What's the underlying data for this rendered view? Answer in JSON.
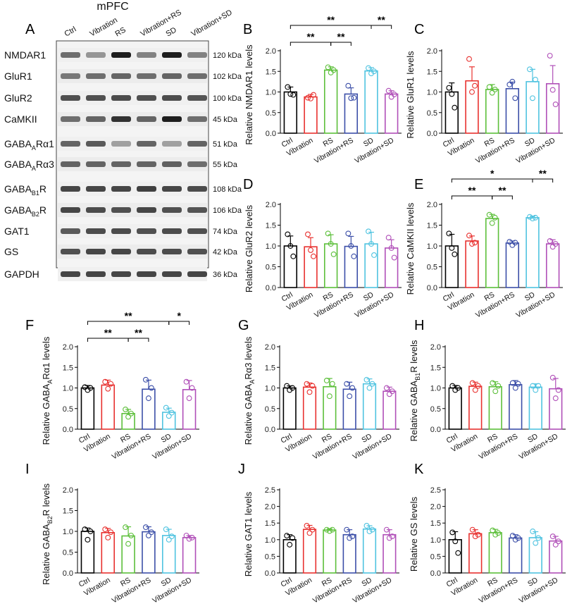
{
  "blot": {
    "letter": "A",
    "title": "mPFC",
    "lanes": [
      "Ctrl",
      "Vibration",
      "RS",
      "Vibration+RS",
      "SD",
      "Vibration+SD"
    ],
    "rows": [
      {
        "protein": "NMDAR1",
        "sub": "",
        "kda": "120 kDa",
        "intensity": [
          0.55,
          0.35,
          0.95,
          0.45,
          0.95,
          0.45
        ]
      },
      {
        "protein": "GluR1",
        "sub": "",
        "kda": "102 kDa",
        "intensity": [
          0.5,
          0.55,
          0.6,
          0.55,
          0.6,
          0.55
        ]
      },
      {
        "protein": "GluR2",
        "sub": "",
        "kda": "100 kDa",
        "intensity": [
          0.7,
          0.7,
          0.72,
          0.7,
          0.72,
          0.68
        ]
      },
      {
        "protein": "CaMKII",
        "sub": "",
        "kda": "45 kDa",
        "intensity": [
          0.55,
          0.6,
          0.85,
          0.6,
          0.95,
          0.55
        ]
      },
      {
        "protein": "GABA",
        "sub": "A",
        "suffix": "Rα1",
        "kda": "51 kDa",
        "intensity": [
          0.6,
          0.65,
          0.3,
          0.6,
          0.3,
          0.6
        ]
      },
      {
        "protein": "GABA",
        "sub": "A",
        "suffix": "Rα3",
        "kda": "55 kDa",
        "intensity": [
          0.6,
          0.6,
          0.6,
          0.6,
          0.62,
          0.55
        ]
      },
      {
        "protein": "GABA",
        "sub": "B1",
        "suffix": "R",
        "kda": "108 kDa",
        "intensity": [
          0.75,
          0.75,
          0.75,
          0.78,
          0.75,
          0.72
        ]
      },
      {
        "protein": "GABA",
        "sub": "B2",
        "suffix": "R",
        "kda": "106 kDa",
        "intensity": [
          0.75,
          0.72,
          0.7,
          0.75,
          0.7,
          0.68
        ]
      },
      {
        "protein": "GAT1",
        "sub": "",
        "kda": "74 kDa",
        "intensity": [
          0.65,
          0.72,
          0.72,
          0.7,
          0.72,
          0.7
        ]
      },
      {
        "protein": "GS",
        "sub": "",
        "kda": "42 kDa",
        "intensity": [
          0.7,
          0.75,
          0.75,
          0.72,
          0.72,
          0.7
        ]
      },
      {
        "protein": "GAPDH",
        "sub": "",
        "kda": "36 kDa",
        "intensity": [
          0.75,
          0.75,
          0.75,
          0.75,
          0.75,
          0.75
        ]
      }
    ]
  },
  "colors": {
    "Ctrl": "#000000",
    "Vibration": "#e8312f",
    "RS": "#5cbf3a",
    "Vibration+RS": "#3c4fa8",
    "SD": "#4fc3e0",
    "Vibration+SD": "#b04fb8"
  },
  "chart_data": [
    {
      "id": "B",
      "letter": "B",
      "type": "bar",
      "ylabel": "Relative NMDAR1 levels",
      "ylim": [
        0,
        2.0
      ],
      "yticks": [
        0,
        0.5,
        1.0,
        1.5,
        2.0
      ],
      "categories": [
        "Ctrl",
        "Vibration",
        "RS",
        "Vibration+RS",
        "SD",
        "Vibration+SD"
      ],
      "values": [
        1.0,
        0.88,
        1.53,
        0.95,
        1.51,
        0.95
      ],
      "errors": [
        0.12,
        0.06,
        0.08,
        0.15,
        0.08,
        0.08
      ],
      "points": [
        [
          1.12,
          0.95,
          0.93
        ],
        [
          0.86,
          0.84,
          0.93
        ],
        [
          1.6,
          1.47,
          1.53
        ],
        [
          1.15,
          0.85,
          0.86
        ],
        [
          1.58,
          1.45,
          1.5
        ],
        [
          1.03,
          0.88,
          0.94
        ]
      ],
      "sig": [
        {
          "from": 0,
          "to": 2,
          "text": "**"
        },
        {
          "from": 2,
          "to": 3,
          "text": "**"
        },
        {
          "from": 0,
          "to": 4,
          "text": "**"
        },
        {
          "from": 4,
          "to": 5,
          "text": "**"
        }
      ]
    },
    {
      "id": "C",
      "letter": "C",
      "type": "bar",
      "ylabel": "Relative GluR1 levels",
      "ylim": [
        0,
        2.0
      ],
      "yticks": [
        0,
        0.5,
        1.0,
        1.5,
        2.0
      ],
      "categories": [
        "Ctrl",
        "Vibration",
        "RS",
        "Vibration+RS",
        "SD",
        "Vibration+SD"
      ],
      "values": [
        1.0,
        1.27,
        1.06,
        1.08,
        1.25,
        1.2
      ],
      "errors": [
        0.22,
        0.34,
        0.12,
        0.16,
        0.3,
        0.44
      ],
      "points": [
        [
          1.1,
          0.95,
          0.62
        ],
        [
          1.8,
          1.0,
          1.15
        ],
        [
          1.12,
          0.98,
          1.06
        ],
        [
          1.18,
          1.25,
          0.85
        ],
        [
          1.55,
          0.85,
          1.3
        ],
        [
          1.88,
          1.05,
          0.7
        ]
      ],
      "sig": []
    },
    {
      "id": "D",
      "letter": "D",
      "type": "bar",
      "ylabel": "Relative GluR2 levels",
      "ylim": [
        0,
        2.0
      ],
      "yticks": [
        0,
        0.5,
        1.0,
        1.5,
        2.0
      ],
      "categories": [
        "Ctrl",
        "Vibration",
        "RS",
        "Vibration+RS",
        "SD",
        "Vibration+SD"
      ],
      "values": [
        1.0,
        0.98,
        1.05,
        0.99,
        1.05,
        0.95
      ],
      "errors": [
        0.24,
        0.22,
        0.22,
        0.24,
        0.28,
        0.2
      ],
      "points": [
        [
          1.28,
          1.0,
          0.75
        ],
        [
          1.28,
          0.9,
          0.75
        ],
        [
          1.3,
          1.05,
          0.8
        ],
        [
          1.3,
          1.0,
          0.75
        ],
        [
          1.35,
          1.05,
          0.78
        ],
        [
          1.2,
          0.95,
          0.72
        ]
      ],
      "sig": []
    },
    {
      "id": "E",
      "letter": "E",
      "type": "bar",
      "ylabel": "Relative CaMKII levels",
      "ylim": [
        0,
        2.0
      ],
      "yticks": [
        0,
        0.5,
        1.0,
        1.5,
        2.0
      ],
      "categories": [
        "Ctrl",
        "Vibration",
        "RS",
        "Vibration+RS",
        "SD",
        "Vibration+SD"
      ],
      "values": [
        1.0,
        1.12,
        1.66,
        1.07,
        1.68,
        1.05
      ],
      "errors": [
        0.28,
        0.12,
        0.1,
        0.05,
        0.04,
        0.1
      ],
      "points": [
        [
          1.3,
          0.95,
          0.8
        ],
        [
          1.25,
          1.05,
          1.08
        ],
        [
          1.75,
          1.55,
          1.68
        ],
        [
          1.1,
          1.02,
          1.08
        ],
        [
          1.7,
          1.66,
          1.68
        ],
        [
          1.12,
          0.98,
          1.05
        ]
      ],
      "sig": [
        {
          "from": 0,
          "to": 2,
          "text": "**"
        },
        {
          "from": 2,
          "to": 3,
          "text": "**"
        },
        {
          "from": 0,
          "to": 4,
          "text": "*"
        },
        {
          "from": 4,
          "to": 5,
          "text": "**"
        }
      ]
    },
    {
      "id": "F",
      "letter": "F",
      "type": "bar",
      "ylabel": "Relative GABA_A Rα1 levels",
      "ylim": [
        0,
        2.0
      ],
      "yticks": [
        0,
        0.5,
        1.0,
        1.5,
        2.0
      ],
      "categories": [
        "Ctrl",
        "Vibration",
        "RS",
        "Vibration+RS",
        "SD",
        "Vibration+SD"
      ],
      "values": [
        1.0,
        1.07,
        0.38,
        0.97,
        0.41,
        0.96
      ],
      "errors": [
        0.06,
        0.12,
        0.1,
        0.22,
        0.1,
        0.22
      ],
      "points": [
        [
          1.02,
          0.95,
          1.0
        ],
        [
          1.15,
          0.98,
          1.1
        ],
        [
          0.48,
          0.3,
          0.38
        ],
        [
          1.2,
          0.75,
          1.0
        ],
        [
          0.52,
          0.32,
          0.4
        ],
        [
          1.15,
          0.75,
          1.0
        ]
      ],
      "sig": [
        {
          "from": 0,
          "to": 2,
          "text": "**"
        },
        {
          "from": 2,
          "to": 3,
          "text": "**"
        },
        {
          "from": 0,
          "to": 4,
          "text": "**"
        },
        {
          "from": 4,
          "to": 5,
          "text": "*"
        }
      ]
    },
    {
      "id": "G",
      "letter": "G",
      "type": "bar",
      "ylabel": "Relative GABA_A Rα3 levels",
      "ylim": [
        0,
        2.0
      ],
      "yticks": [
        0,
        0.5,
        1.0,
        1.5,
        2.0
      ],
      "categories": [
        "Ctrl",
        "Vibration",
        "RS",
        "Vibration+RS",
        "SD",
        "Vibration+SD"
      ],
      "values": [
        1.0,
        1.02,
        1.03,
        0.97,
        1.1,
        0.92
      ],
      "errors": [
        0.05,
        0.1,
        0.2,
        0.17,
        0.12,
        0.1
      ],
      "points": [
        [
          1.05,
          0.95,
          1.0
        ],
        [
          1.1,
          0.9,
          1.05
        ],
        [
          1.18,
          0.8,
          1.1
        ],
        [
          1.1,
          0.8,
          1.0
        ],
        [
          1.2,
          1.0,
          1.1
        ],
        [
          1.0,
          0.85,
          0.92
        ]
      ],
      "sig": []
    },
    {
      "id": "H",
      "letter": "H",
      "type": "bar",
      "ylabel": "Relative GABA_B1 R levels",
      "ylim": [
        0,
        2.0
      ],
      "yticks": [
        0,
        0.5,
        1.0,
        1.5,
        2.0
      ],
      "categories": [
        "Ctrl",
        "Vibration",
        "RS",
        "Vibration+RS",
        "SD",
        "Vibration+SD"
      ],
      "values": [
        1.0,
        1.04,
        1.03,
        1.08,
        1.02,
        0.98
      ],
      "errors": [
        0.06,
        0.1,
        0.12,
        0.1,
        0.08,
        0.25
      ],
      "points": [
        [
          1.05,
          0.95,
          1.0
        ],
        [
          1.12,
          0.95,
          1.05
        ],
        [
          1.12,
          0.92,
          1.05
        ],
        [
          1.12,
          1.0,
          1.1
        ],
        [
          1.05,
          0.95,
          1.05
        ],
        [
          1.25,
          0.75,
          0.95
        ]
      ],
      "sig": []
    },
    {
      "id": "I",
      "letter": "I",
      "type": "bar",
      "ylabel": "Relative GABA_B2 R levels",
      "ylim": [
        0,
        2.0
      ],
      "yticks": [
        0,
        0.5,
        1.0,
        1.5,
        2.0
      ],
      "categories": [
        "Ctrl",
        "Vibration",
        "RS",
        "Vibration+RS",
        "SD",
        "Vibration+SD"
      ],
      "values": [
        1.0,
        0.97,
        0.89,
        0.99,
        0.9,
        0.85
      ],
      "errors": [
        0.08,
        0.1,
        0.22,
        0.12,
        0.15,
        0.05
      ],
      "points": [
        [
          1.05,
          0.8,
          1.0
        ],
        [
          1.05,
          0.85,
          0.98
        ],
        [
          1.1,
          0.7,
          0.9
        ],
        [
          1.1,
          0.9,
          0.98
        ],
        [
          1.05,
          0.8,
          0.88
        ],
        [
          0.9,
          0.82,
          0.85
        ]
      ],
      "sig": []
    },
    {
      "id": "J",
      "letter": "J",
      "type": "bar",
      "ylabel": "Relative GAT1 levels",
      "ylim": [
        0,
        2.5
      ],
      "yticks": [
        0,
        0.5,
        1.0,
        1.5,
        2.0,
        2.5
      ],
      "categories": [
        "Ctrl",
        "Vibration",
        "RS",
        "Vibration+RS",
        "SD",
        "Vibration+SD"
      ],
      "values": [
        1.0,
        1.31,
        1.29,
        1.15,
        1.32,
        1.15
      ],
      "errors": [
        0.15,
        0.12,
        0.04,
        0.15,
        0.1,
        0.15
      ],
      "points": [
        [
          1.12,
          0.85,
          1.05
        ],
        [
          1.42,
          1.2,
          1.3
        ],
        [
          1.3,
          1.26,
          1.3
        ],
        [
          1.3,
          1.05,
          1.1
        ],
        [
          1.42,
          1.25,
          1.3
        ],
        [
          1.3,
          1.05,
          1.1
        ]
      ],
      "sig": []
    },
    {
      "id": "K",
      "letter": "K",
      "type": "bar",
      "ylabel": "Relative GS levels",
      "ylim": [
        0,
        2.5
      ],
      "yticks": [
        0,
        0.5,
        1.0,
        1.5,
        2.0,
        2.5
      ],
      "categories": [
        "Ctrl",
        "Vibration",
        "RS",
        "Vibration+RS",
        "SD",
        "Vibration+SD"
      ],
      "values": [
        1.0,
        1.18,
        1.21,
        1.05,
        1.06,
        0.96
      ],
      "errors": [
        0.24,
        0.12,
        0.1,
        0.1,
        0.18,
        0.14
      ],
      "points": [
        [
          1.22,
          0.95,
          0.6
        ],
        [
          1.3,
          1.1,
          1.15
        ],
        [
          1.28,
          1.15,
          1.2
        ],
        [
          1.12,
          1.0,
          1.05
        ],
        [
          1.25,
          0.9,
          1.05
        ],
        [
          1.1,
          0.85,
          0.95
        ]
      ],
      "sig": []
    }
  ]
}
